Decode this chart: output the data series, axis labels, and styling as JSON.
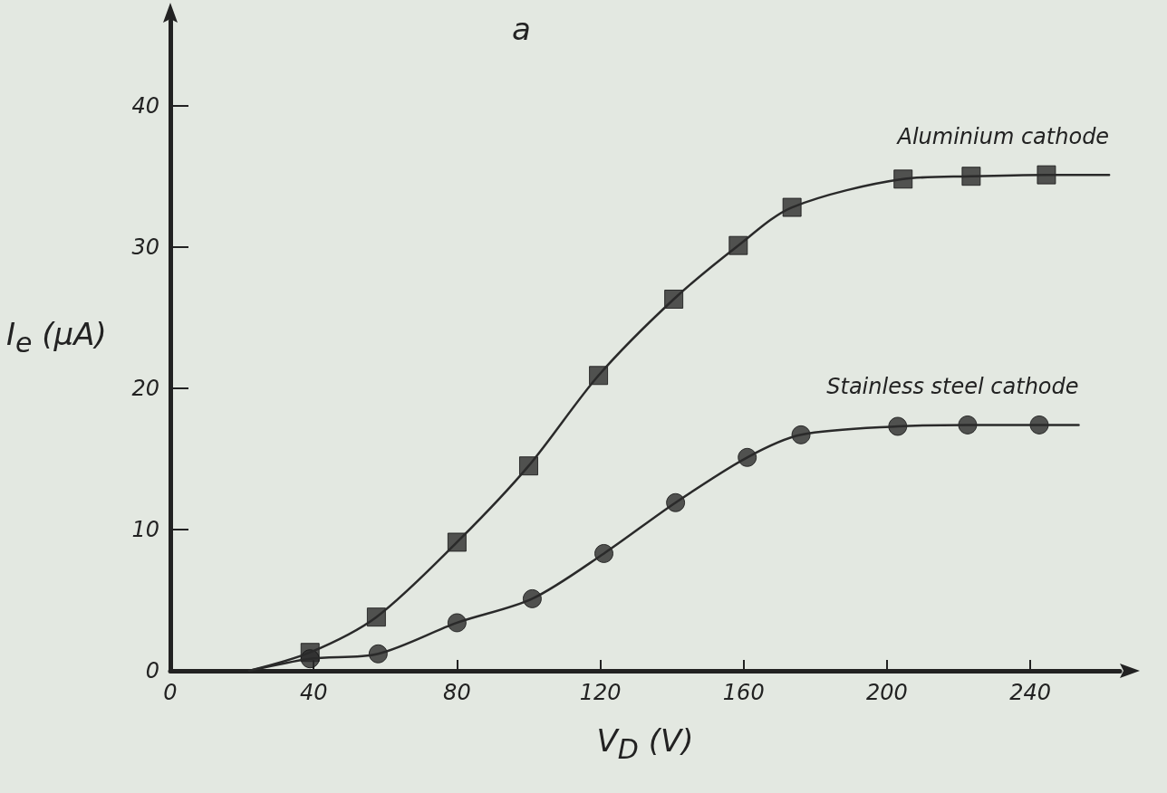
{
  "chart_data": {
    "type": "line",
    "title": "a",
    "xlabel": "V$_{D}$ (V)",
    "ylabel": "I$_{e}$ (μA)",
    "xlim": [
      0,
      265
    ],
    "xticks": [
      0,
      40,
      80,
      120,
      160,
      200,
      240
    ],
    "ylim": [
      0,
      46
    ],
    "yticks": [
      0,
      10,
      20,
      30,
      40
    ],
    "grid": false,
    "legend": false,
    "line_style": "solid",
    "marker": "none",
    "series": [
      {
        "name": "Aluminium cathode",
        "color": "#2a2a2a",
        "x": [
          22,
          39,
          57.5,
          80,
          100,
          119.5,
          140.5,
          158.5,
          173.5,
          204.5,
          223.5,
          244.5,
          262
        ],
        "values": [
          0,
          1.3,
          3.8,
          9.1,
          14.5,
          20.9,
          26.3,
          30.1,
          32.8,
          34.8,
          35,
          35.1,
          35.1
        ]
      },
      {
        "type": "scatter",
        "marker": "square",
        "color": "#2a2a2a",
        "x": [
          39,
          57.5,
          80,
          100,
          119.5,
          140.5,
          158.5,
          173.5,
          204.5,
          223.5,
          244.5
        ],
        "values": [
          1.3,
          3.8,
          9.1,
          14.5,
          20.9,
          26.3,
          30.1,
          32.8,
          34.8,
          35,
          35.1
        ]
      },
      {
        "name": "Stainless steel cathode",
        "color": "#2a2a2a",
        "x": [
          22,
          39,
          58,
          80,
          101,
          121,
          141,
          161,
          176,
          203,
          222.5,
          242.5,
          253.5
        ],
        "values": [
          0,
          0.85,
          1.2,
          3.4,
          5.1,
          8.3,
          11.9,
          15.1,
          16.7,
          17.3,
          17.4,
          17.4,
          17.4
        ]
      },
      {
        "type": "scatter",
        "marker": "circle",
        "color": "#2a2a2a",
        "x": [
          39,
          58,
          80,
          101,
          121,
          141,
          161,
          176,
          203,
          222.5,
          242.5
        ],
        "values": [
          0.85,
          1.2,
          3.4,
          5.1,
          8.3,
          11.9,
          15.1,
          16.7,
          17.3,
          17.4,
          17.4
        ]
      }
    ]
  }
}
